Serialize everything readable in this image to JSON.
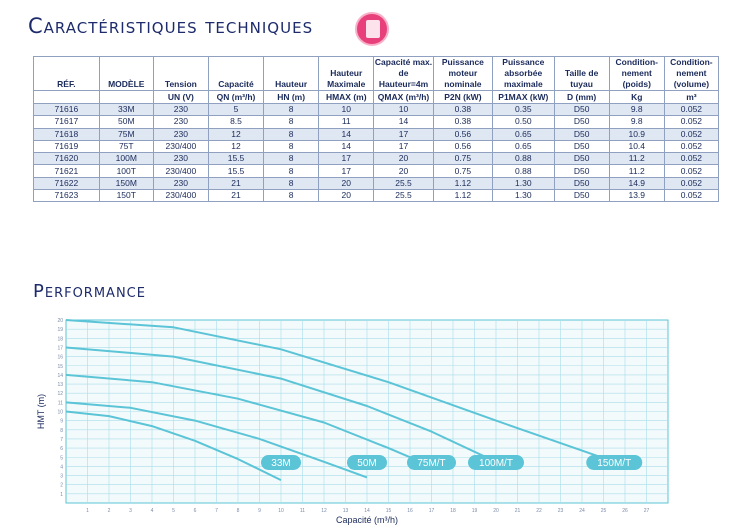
{
  "headings": {
    "specs": "Caractéristiques techniques",
    "performance": "Performance"
  },
  "table": {
    "headers": [
      "RÉF.",
      "MODÈLE",
      "Tension",
      "Capacité",
      "Hauteur",
      "Hauteur Maximale",
      "Capacité max. de Hauteur=4m",
      "Puissance moteur nominale",
      "Puissance absorbée maximale",
      "Taille de tuyau",
      "Condition-nement (poids)",
      "Condition-nement (volume)"
    ],
    "units": [
      "",
      "",
      "UN (V)",
      "QN (m³/h)",
      "HN (m)",
      "HMAX (m)",
      "QMAX (m³/h)",
      "P2N (kW)",
      "P1MAX (kW)",
      "D (mm)",
      "Kg",
      "m³"
    ],
    "rows": [
      [
        "71616",
        "33M",
        "230",
        "5",
        "8",
        "10",
        "10",
        "0.38",
        "0.35",
        "D50",
        "9.8",
        "0.052"
      ],
      [
        "71617",
        "50M",
        "230",
        "8.5",
        "8",
        "11",
        "14",
        "0.38",
        "0.50",
        "D50",
        "9.8",
        "0.052"
      ],
      [
        "71618",
        "75M",
        "230",
        "12",
        "8",
        "14",
        "17",
        "0.56",
        "0.65",
        "D50",
        "10.9",
        "0.052"
      ],
      [
        "71619",
        "75T",
        "230/400",
        "12",
        "8",
        "14",
        "17",
        "0.56",
        "0.65",
        "D50",
        "10.4",
        "0.052"
      ],
      [
        "71620",
        "100M",
        "230",
        "15.5",
        "8",
        "17",
        "20",
        "0.75",
        "0.88",
        "D50",
        "11.2",
        "0.052"
      ],
      [
        "71621",
        "100T",
        "230/400",
        "15.5",
        "8",
        "17",
        "20",
        "0.75",
        "0.88",
        "D50",
        "11.2",
        "0.052"
      ],
      [
        "71622",
        "150M",
        "230",
        "21",
        "8",
        "20",
        "25.5",
        "1.12",
        "1.30",
        "D50",
        "14.9",
        "0.052"
      ],
      [
        "71623",
        "150T",
        "230/400",
        "21",
        "8",
        "20",
        "25.5",
        "1.12",
        "1.30",
        "D50",
        "13.9",
        "0.052"
      ]
    ]
  },
  "chart_data": {
    "type": "line",
    "xlabel": "Capacité (m³/h)",
    "ylabel": "HMT (m)",
    "xlim": [
      0,
      28
    ],
    "ylim": [
      0,
      20
    ],
    "xticks": [
      1,
      2,
      3,
      4,
      5,
      6,
      7,
      8,
      9,
      10,
      11,
      12,
      13,
      14,
      15,
      16,
      17,
      18,
      19,
      20,
      21,
      22,
      23,
      24,
      25,
      26,
      27
    ],
    "yticks": [
      1,
      2,
      3,
      4,
      5,
      6,
      7,
      8,
      9,
      10,
      11,
      12,
      13,
      14,
      15,
      16,
      17,
      18,
      19,
      20
    ],
    "grid": true,
    "color": "#5bc4d6",
    "series": [
      {
        "name": "33M",
        "x": [
          0,
          2,
          4,
          6,
          8,
          10
        ],
        "y": [
          10,
          9.5,
          8.4,
          6.8,
          4.8,
          2.5
        ]
      },
      {
        "name": "50M",
        "x": [
          0,
          3,
          6,
          9,
          12,
          14
        ],
        "y": [
          11,
          10.4,
          9,
          7,
          4.5,
          2.8
        ]
      },
      {
        "name": "75M/T",
        "x": [
          0,
          4,
          8,
          12,
          15,
          17
        ],
        "y": [
          14,
          13.2,
          11.4,
          8.8,
          6,
          4
        ]
      },
      {
        "name": "100M/T",
        "x": [
          0,
          5,
          10,
          14,
          17,
          20
        ],
        "y": [
          17,
          16,
          13.6,
          10.6,
          7.8,
          4.5
        ]
      },
      {
        "name": "150M/T",
        "x": [
          0,
          5,
          10,
          15,
          20,
          25.5
        ],
        "y": [
          20,
          19.2,
          16.8,
          13.2,
          9,
          4.5
        ]
      }
    ]
  }
}
